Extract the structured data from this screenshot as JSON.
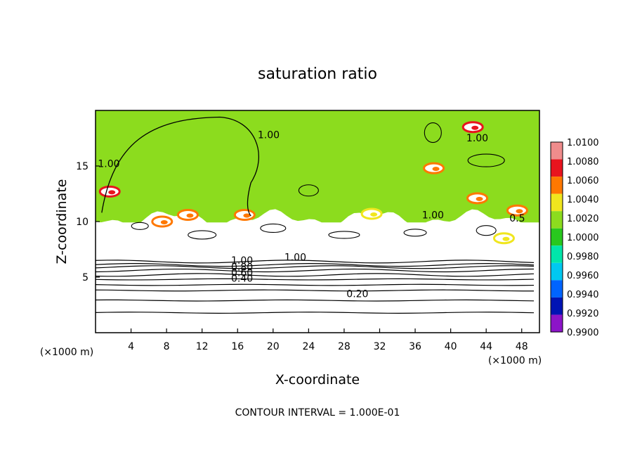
{
  "chart_data": {
    "type": "heatmap",
    "title": "saturation ratio",
    "xlabel": "X-coordinate",
    "ylabel": "Z-coordinate",
    "x_unit": "(×1000 m)",
    "y_unit": "(×1000 m)",
    "footer": "CONTOUR INTERVAL = 1.000E-01",
    "xlim": [
      0,
      50
    ],
    "ylim": [
      0,
      20
    ],
    "x_ticks": [
      4,
      8,
      12,
      16,
      20,
      24,
      28,
      32,
      36,
      40,
      44,
      48
    ],
    "y_ticks": [
      5,
      10,
      15
    ],
    "colorbar": {
      "range": [
        0.99,
        1.01
      ],
      "labels": [
        "1.0100",
        "1.0080",
        "1.0060",
        "1.0040",
        "1.0020",
        "1.0000",
        "0.9980",
        "0.9960",
        "0.9940",
        "0.9920",
        "0.9900"
      ],
      "bands": [
        {
          "value": 1.009,
          "color": "#f08c8c"
        },
        {
          "value": 1.007,
          "color": "#e8141e"
        },
        {
          "value": 1.005,
          "color": "#ff7800"
        },
        {
          "value": 1.003,
          "color": "#f0e61e"
        },
        {
          "value": 1.001,
          "color": "#8cdc1e"
        },
        {
          "value": 0.999,
          "color": "#28c81e"
        },
        {
          "value": 0.997,
          "color": "#00e6aa"
        },
        {
          "value": 0.995,
          "color": "#00c8f0"
        },
        {
          "value": 0.993,
          "color": "#0064ff"
        },
        {
          "value": 0.991,
          "color": "#0014b4"
        },
        {
          "value": 0.9905,
          "color": "#8c14c8"
        }
      ]
    },
    "contour_labels": [
      {
        "text": "1.00",
        "x": 1.5,
        "y": 14.9
      },
      {
        "text": "1.00",
        "x": 19.5,
        "y": 17.5
      },
      {
        "text": "1.00",
        "x": 43.0,
        "y": 17.2
      },
      {
        "text": "1.00",
        "x": 38.0,
        "y": 10.3
      },
      {
        "text": "1.00",
        "x": 22.5,
        "y": 6.5
      },
      {
        "text": "0.5",
        "x": 47.5,
        "y": 10.0
      },
      {
        "text": "1.00",
        "x": 16.5,
        "y": 6.2
      },
      {
        "text": "0.80",
        "x": 16.5,
        "y": 5.6
      },
      {
        "text": "0.60",
        "x": 16.5,
        "y": 5.1
      },
      {
        "text": "0.40",
        "x": 16.5,
        "y": 4.6
      },
      {
        "text": "0.20",
        "x": 29.5,
        "y": 3.2
      }
    ],
    "contour_levels": [
      0.2,
      0.4,
      0.6,
      0.8,
      1.0
    ],
    "lower_level_contours_y": [
      1.8,
      2.9,
      3.8,
      4.3,
      4.8,
      5.2,
      5.6,
      5.9,
      6.1,
      6.4
    ],
    "green_region": {
      "value": 1.0,
      "y_bottom_km": 10.3
    },
    "hotspots": [
      {
        "x": 1.6,
        "y": 12.7,
        "value": 1.006
      },
      {
        "x": 10.4,
        "y": 10.6,
        "value": 1.004
      },
      {
        "x": 16.8,
        "y": 10.6,
        "value": 1.004
      },
      {
        "x": 31.1,
        "y": 10.7,
        "value": 1.003
      },
      {
        "x": 38.1,
        "y": 14.8,
        "value": 1.005
      },
      {
        "x": 42.5,
        "y": 18.5,
        "value": 1.007
      },
      {
        "x": 43.0,
        "y": 12.1,
        "value": 1.005
      },
      {
        "x": 47.5,
        "y": 11.0,
        "value": 1.004
      },
      {
        "x": 46.0,
        "y": 8.5,
        "value": 1.003
      },
      {
        "x": 7.5,
        "y": 10.0,
        "value": 1.005
      }
    ],
    "grid": false,
    "legend": "right"
  }
}
